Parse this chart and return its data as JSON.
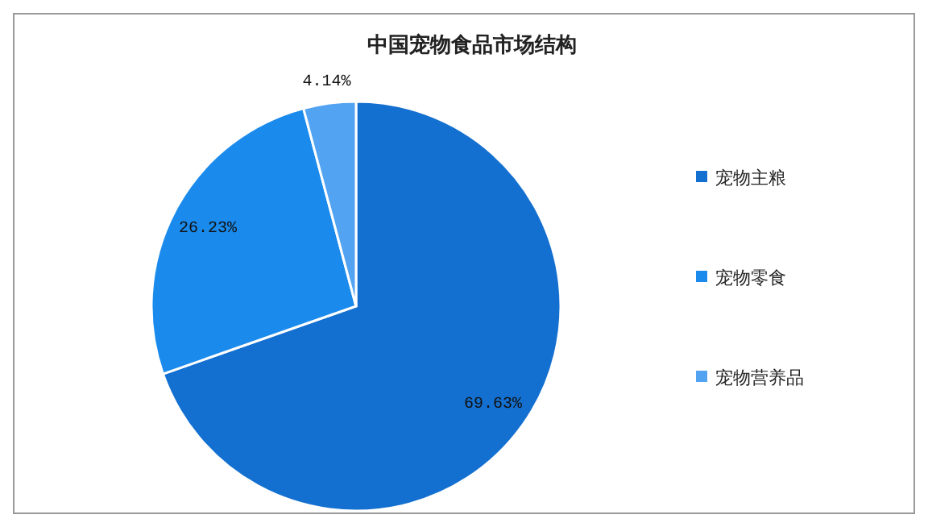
{
  "chart_data": {
    "type": "pie",
    "title": "中国宠物食品市场结构",
    "categories": [
      "宠物主粮",
      "宠物零食",
      "宠物营养品"
    ],
    "values": [
      69.63,
      26.23,
      4.14
    ],
    "colors": [
      "#1470d0",
      "#1a8bed",
      "#52a3f2"
    ],
    "value_labels": [
      "69.63%",
      "26.23%",
      "4.14%"
    ],
    "legend": "right"
  }
}
